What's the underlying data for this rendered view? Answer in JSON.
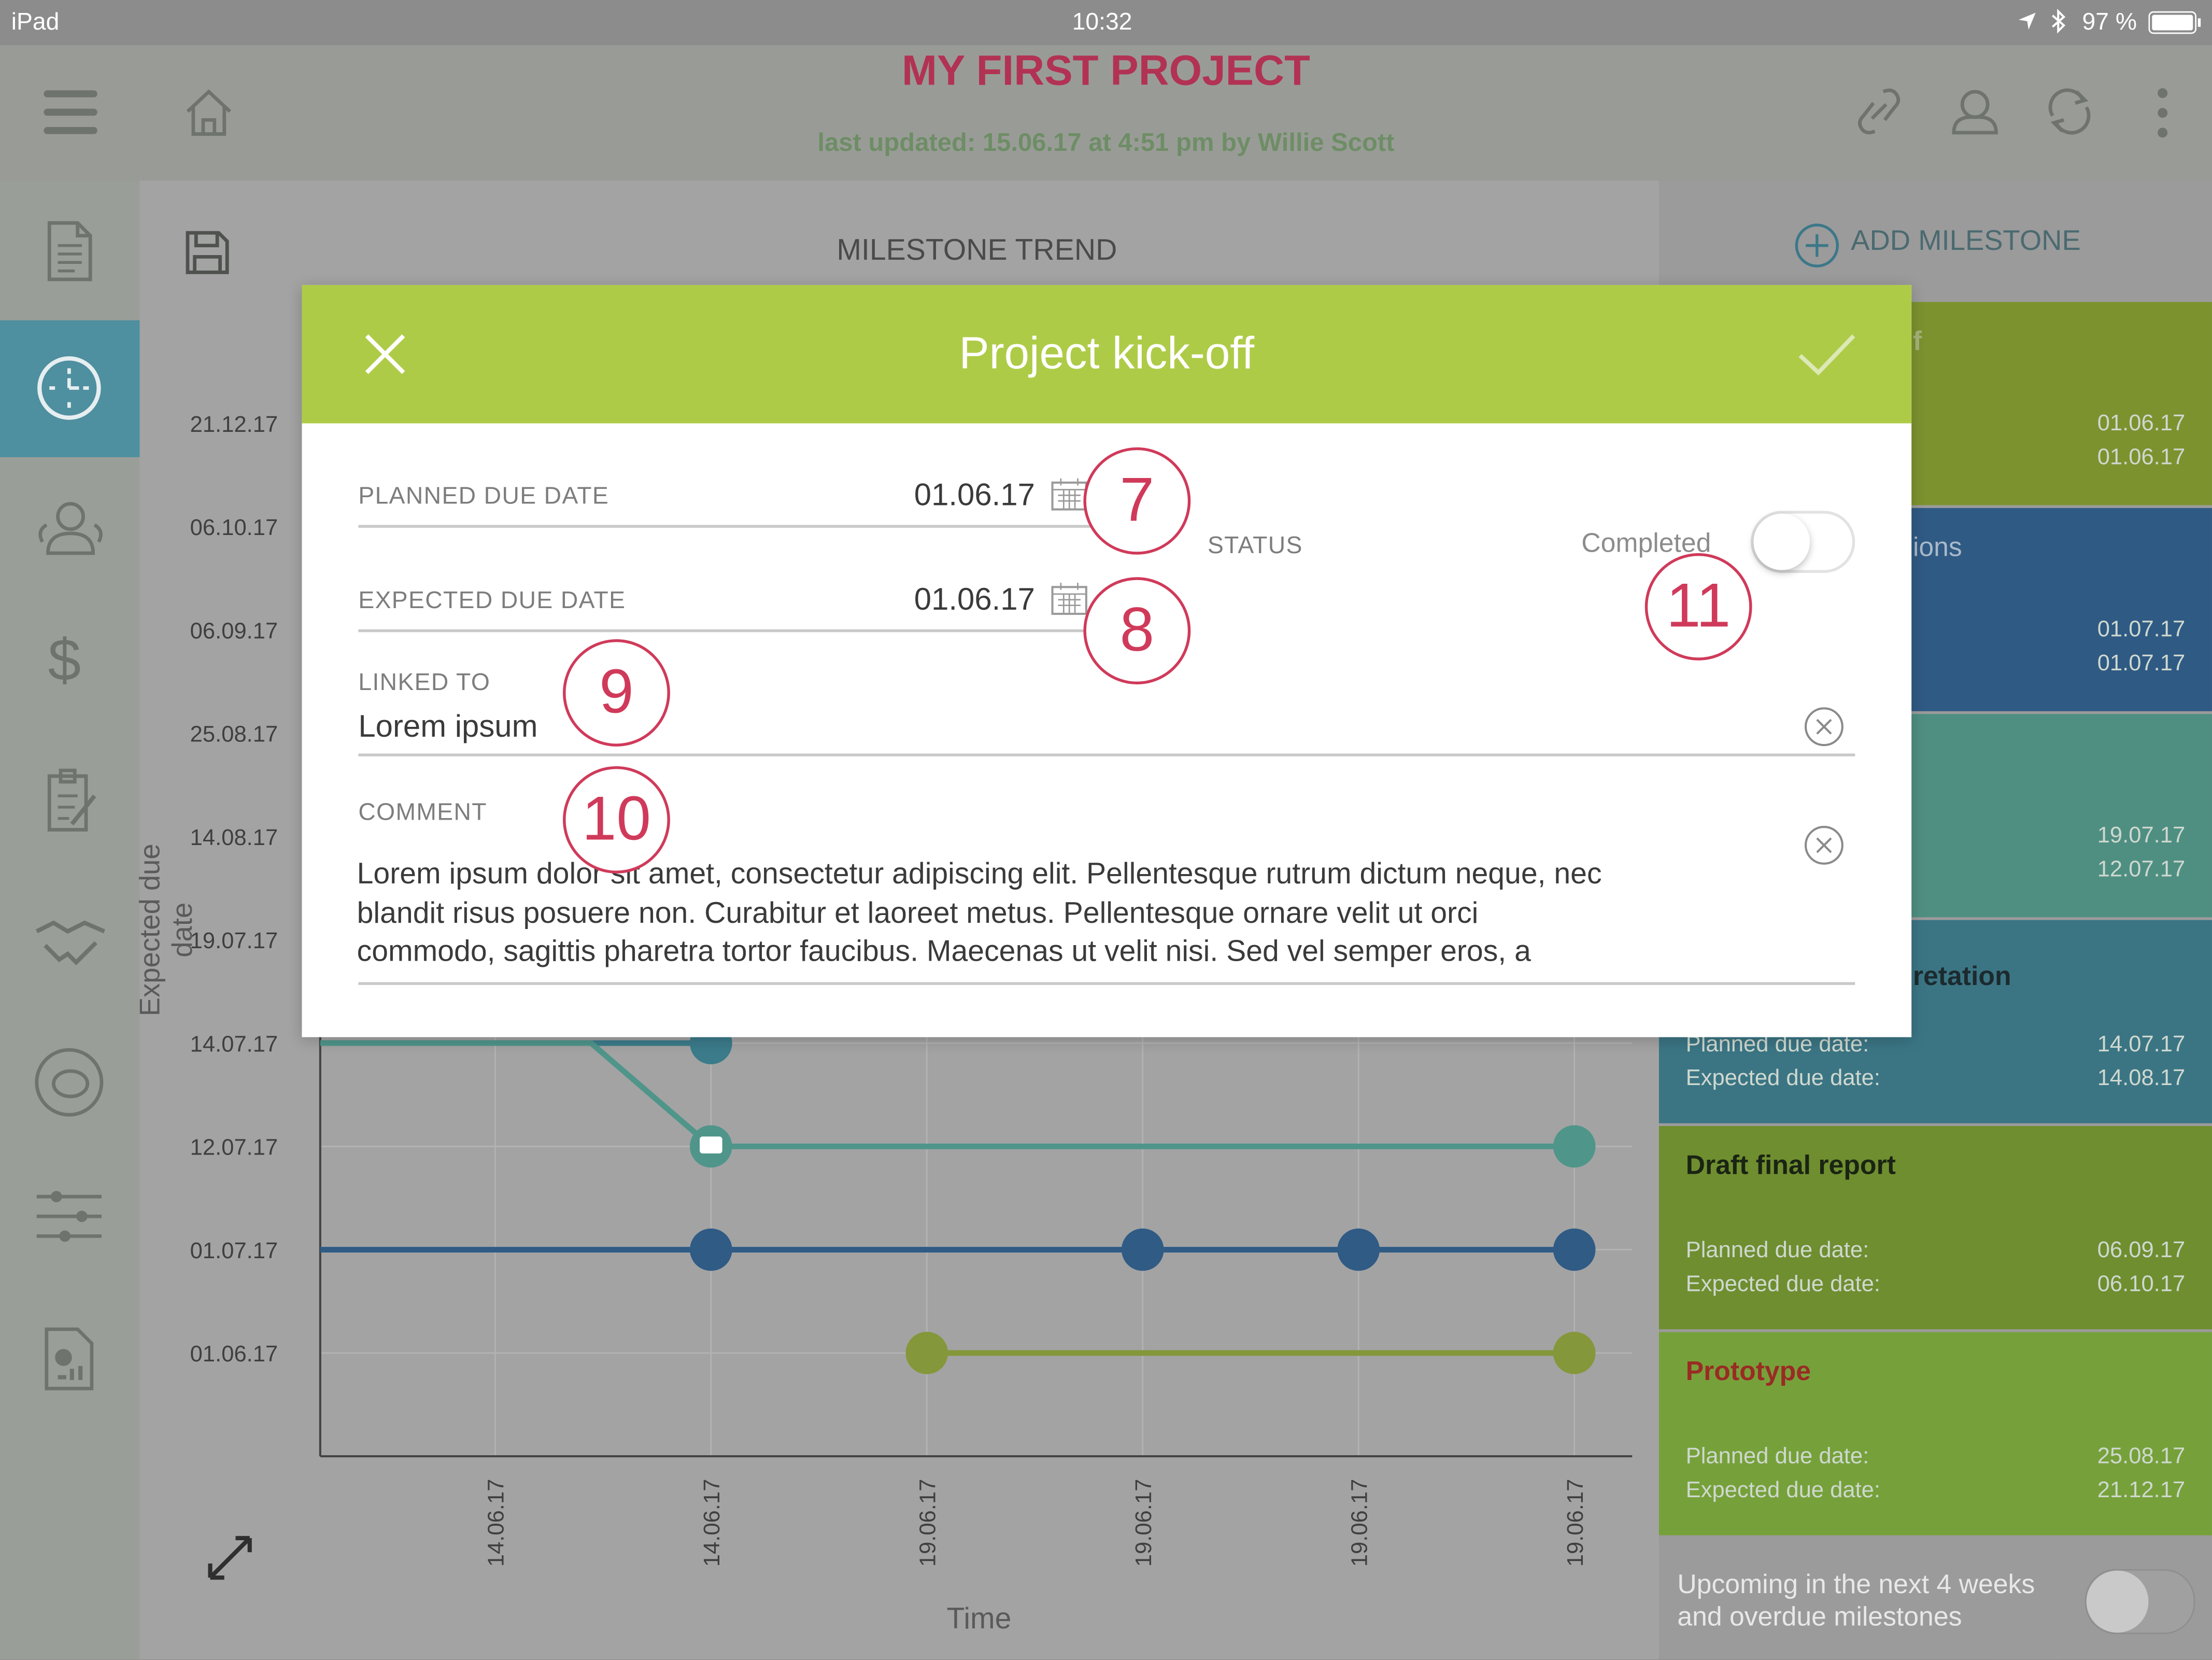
{
  "status_bar": {
    "device": "iPad",
    "time": "10:32",
    "battery": "97 %"
  },
  "header": {
    "title": "MY FIRST PROJECT",
    "subtitle": "last updated: 15.06.17 at 4:51 pm by Willie Scott"
  },
  "center": {
    "title": "MILESTONE TREND"
  },
  "add_milestone_label": "ADD MILESTONE",
  "chart_data": {
    "type": "line",
    "xlabel": "Time",
    "ylabel": "Expected due date",
    "x": [
      "14.06.17",
      "14.06.17",
      "19.06.17",
      "19.06.17",
      "19.06.17",
      "19.06.17"
    ],
    "y_ticks": [
      "21.12.17",
      "06.10.17",
      "06.09.17",
      "25.08.17",
      "14.08.17",
      "19.07.17",
      "14.07.17",
      "12.07.17",
      "01.07.17",
      "01.06.17"
    ],
    "series": [
      {
        "color": "#3b7b8a",
        "points": [
          [
            "14.06.17",
            "14.07.17"
          ],
          [
            "14.06.17",
            "14.07.17"
          ]
        ]
      },
      {
        "color": "#4f958a",
        "points": [
          [
            "14.06.17",
            "14.07.17"
          ],
          [
            "14.06.17",
            "12.07.17"
          ],
          [
            "19.06.17",
            "12.07.17"
          ]
        ]
      },
      {
        "color": "#2f5b85",
        "points": [
          [
            "14.06.17",
            "01.07.17"
          ],
          [
            "19.06.17",
            "01.07.17"
          ],
          [
            "19.06.17",
            "01.07.17"
          ],
          [
            "19.06.17",
            "01.07.17"
          ]
        ]
      },
      {
        "color": "#84973a",
        "points": [
          [
            "19.06.17",
            "01.06.17"
          ],
          [
            "19.06.17",
            "01.06.17"
          ]
        ]
      }
    ]
  },
  "milestones": [
    {
      "partial_title": "f",
      "planned": "01.06.17",
      "expected": "01.06.17",
      "color": "#7c922f"
    },
    {
      "partial_title": "ions",
      "planned": "01.07.17",
      "expected": "01.07.17",
      "color": "#2f5a84"
    },
    {
      "partial_title": "",
      "planned": "19.07.17",
      "expected": "12.07.17",
      "color": "#4f8f82"
    },
    {
      "partial_title": "retation",
      "planned_label": "Planned due date:",
      "expected_label": "Expected due date:",
      "planned": "14.07.17",
      "expected": "14.08.17",
      "color": "#3b7584"
    },
    {
      "title": "Draft final report",
      "planned_label": "Planned due date:",
      "expected_label": "Expected due date:",
      "planned": "06.09.17",
      "expected": "06.10.17",
      "color": "#6f8e30"
    },
    {
      "title": "Prototype",
      "planned_label": "Planned due date:",
      "expected_label": "Expected due date:",
      "planned": "25.08.17",
      "expected": "21.12.17",
      "color": "#76a13a"
    }
  ],
  "upcoming_toggle_label_1": "Upcoming in the next 4 weeks",
  "upcoming_toggle_label_2": "and overdue milestones",
  "modal": {
    "title": "Project kick-off",
    "planned_label": "PLANNED DUE DATE",
    "planned_value": "01.06.17",
    "expected_label": "EXPECTED DUE DATE",
    "expected_value": "01.06.17",
    "status_label": "STATUS",
    "completed_label": "Completed",
    "linked_label": "LINKED TO",
    "linked_value": "Lorem ipsum",
    "comment_label": "COMMENT",
    "comment_line1": "Lorem ipsum dolor sit amet, consectetur adipiscing elit. Pellentesque rutrum dictum neque, nec",
    "comment_line2": "blandit risus posuere non. Curabitur et laoreet metus. Pellentesque ornare velit ut orci",
    "comment_line3": "commodo, sagittis pharetra tortor faucibus. Maecenas ut velit nisi. Sed vel semper eros, a"
  },
  "callouts": [
    "7",
    "8",
    "9",
    "10",
    "11"
  ]
}
